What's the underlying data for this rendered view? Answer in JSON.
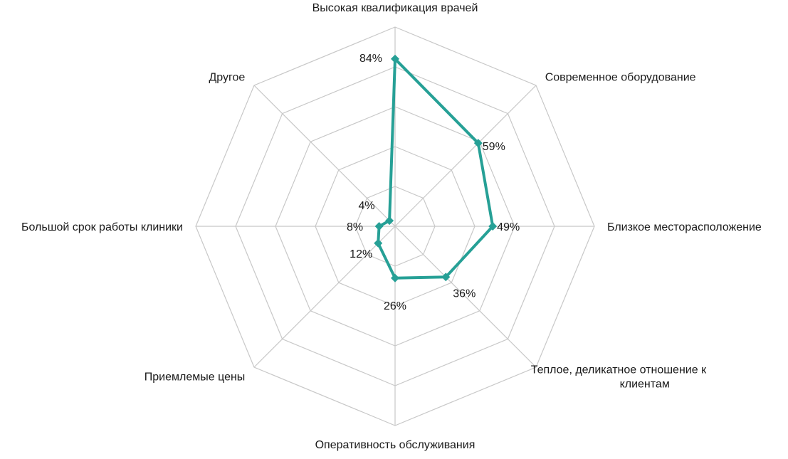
{
  "chart_data": {
    "type": "radar",
    "categories": [
      "Высокая квалификация врачей",
      "Современное оборудование",
      "Близкое месторасположение",
      "Теплое, деликатное отношение к клиентам",
      "Оперативность обслуживания",
      "Приемлемые цены",
      "Большой срок работы клиники",
      "Другое"
    ],
    "category_lines": [
      [
        "Высокая квалификация врачей"
      ],
      [
        "Современное оборудование"
      ],
      [
        "Близкое месторасположение"
      ],
      [
        "Теплое, деликатное отношение к",
        "клиентам"
      ],
      [
        "Оперативность обслуживания"
      ],
      [
        "Приемлемые цены"
      ],
      [
        "Большой срок работы клиники"
      ],
      [
        "Другое"
      ]
    ],
    "series": [
      {
        "values": [
          84,
          59,
          49,
          36,
          26,
          12,
          8,
          4
        ],
        "value_labels": [
          "84%",
          "59%",
          "49%",
          "36%",
          "26%",
          "12%",
          "8%",
          "4%"
        ],
        "color": "#26a096"
      }
    ],
    "rlim": [
      0,
      100
    ],
    "grid": true,
    "grid_color": "#c8c8c8",
    "legend": "none"
  }
}
